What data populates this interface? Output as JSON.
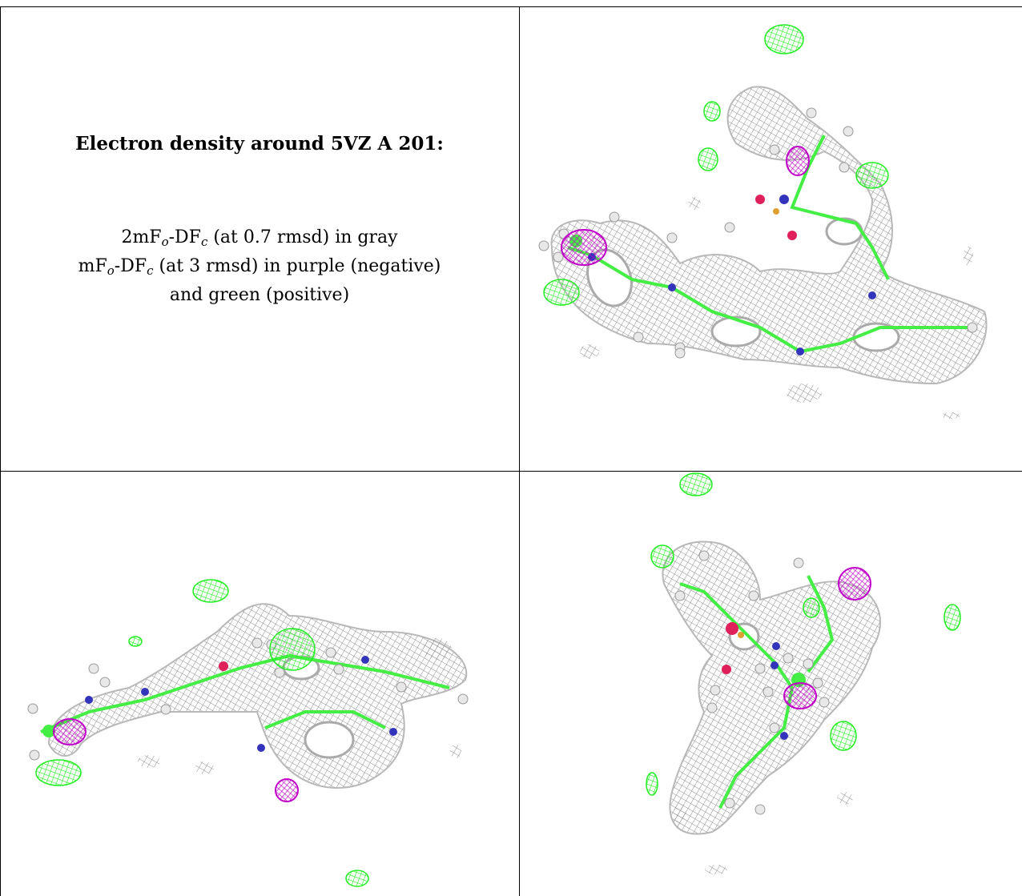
{
  "caption": {
    "title": "Electron density around 5VZ A 201:",
    "line1": {
      "a": "2mF",
      "sub1": "o",
      "b": "-DF",
      "sub2": "c",
      "c": " (at 0.7 rmsd) in gray"
    },
    "line2": {
      "a": "mF",
      "sub1": "o",
      "b": "-DF",
      "sub2": "c",
      "c": " (at 3 rmsd) in purple (negative)"
    },
    "line3": "and green (positive)"
  },
  "colors": {
    "mesh_gray": "#9a9a9a",
    "negative": "#c000c8",
    "positive": "#22ee22",
    "carbon": "#44ee44",
    "nitrogen": "#3333bb",
    "oxygen": "#e0205a",
    "hydrogen": "#e8e8e8",
    "sulfur": "#e0a030"
  },
  "panels": [
    {
      "name": "density-view-top-right",
      "icon": "molecule-density-view"
    },
    {
      "name": "density-view-bottom-left",
      "icon": "molecule-density-view"
    },
    {
      "name": "density-view-bottom-right",
      "icon": "molecule-density-view"
    }
  ]
}
